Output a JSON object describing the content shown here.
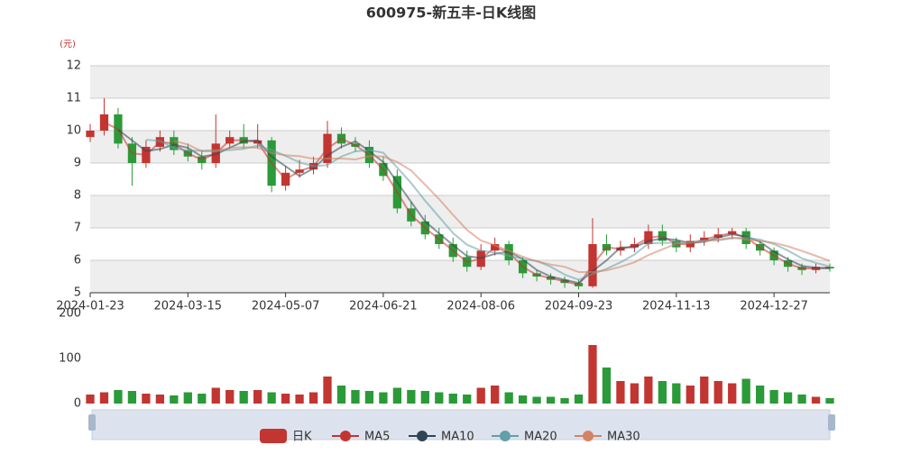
{
  "chart_data": [
    {
      "type": "candlestick",
      "title": "600975-新五丰-日K线图",
      "y_label": "(元)",
      "categories": [
        "2024-01-23",
        null,
        null,
        null,
        null,
        null,
        null,
        "2024-03-15",
        null,
        null,
        null,
        null,
        null,
        null,
        "2024-05-07",
        null,
        null,
        null,
        null,
        null,
        null,
        "2024-06-21",
        null,
        null,
        null,
        null,
        null,
        null,
        "2024-08-06",
        null,
        null,
        null,
        null,
        null,
        null,
        "2024-09-23",
        null,
        null,
        null,
        null,
        null,
        null,
        "2024-11-13",
        null,
        null,
        null,
        null,
        null,
        null,
        "2024-12-27",
        null,
        null,
        null,
        null
      ],
      "ylim": [
        5,
        12
      ],
      "yticks": [
        5,
        6,
        7,
        8,
        9,
        10,
        11,
        12
      ],
      "split_area": true,
      "series": [
        {
          "name": "日K",
          "up_color": "#c23531",
          "down_color": "#2b9a38",
          "values": [
            [
              9.8,
              10.0,
              9.65,
              10.2
            ],
            [
              10.0,
              10.5,
              9.85,
              11.0
            ],
            [
              10.5,
              9.6,
              9.45,
              10.7
            ],
            [
              9.6,
              9.0,
              8.3,
              9.8
            ],
            [
              9.0,
              9.5,
              8.85,
              9.7
            ],
            [
              9.5,
              9.8,
              9.35,
              10.0
            ],
            [
              9.8,
              9.4,
              9.25,
              10.0
            ],
            [
              9.4,
              9.2,
              9.05,
              9.6
            ],
            [
              9.2,
              9.0,
              8.8,
              9.4
            ],
            [
              9.0,
              9.6,
              8.85,
              10.5
            ],
            [
              9.6,
              9.8,
              9.45,
              10.0
            ],
            [
              9.8,
              9.6,
              9.45,
              10.2
            ],
            [
              9.6,
              9.7,
              9.45,
              10.2
            ],
            [
              9.7,
              8.3,
              8.1,
              9.8
            ],
            [
              8.3,
              8.7,
              8.15,
              8.9
            ],
            [
              8.7,
              8.8,
              8.55,
              9.1
            ],
            [
              8.8,
              9.0,
              8.65,
              9.2
            ],
            [
              9.0,
              9.9,
              8.85,
              10.3
            ],
            [
              9.9,
              9.6,
              9.45,
              10.1
            ],
            [
              9.6,
              9.5,
              9.35,
              9.8
            ],
            [
              9.5,
              9.0,
              8.85,
              9.7
            ],
            [
              9.0,
              8.6,
              8.45,
              9.2
            ],
            [
              8.6,
              7.6,
              7.45,
              8.8
            ],
            [
              7.6,
              7.2,
              7.05,
              7.8
            ],
            [
              7.2,
              6.8,
              6.65,
              7.4
            ],
            [
              6.8,
              6.5,
              6.35,
              7.0
            ],
            [
              6.5,
              6.1,
              5.95,
              6.7
            ],
            [
              6.1,
              5.8,
              5.65,
              6.3
            ],
            [
              5.8,
              6.3,
              5.7,
              6.5
            ],
            [
              6.3,
              6.5,
              6.15,
              6.7
            ],
            [
              6.5,
              6.0,
              5.85,
              6.6
            ],
            [
              6.0,
              5.6,
              5.45,
              6.1
            ],
            [
              5.6,
              5.5,
              5.35,
              5.7
            ],
            [
              5.5,
              5.4,
              5.25,
              5.6
            ],
            [
              5.4,
              5.3,
              5.15,
              5.5
            ],
            [
              5.3,
              5.2,
              5.1,
              5.4
            ],
            [
              5.2,
              6.5,
              5.15,
              7.3
            ],
            [
              6.5,
              6.3,
              6.15,
              6.8
            ],
            [
              6.3,
              6.4,
              6.15,
              6.6
            ],
            [
              6.4,
              6.5,
              6.25,
              6.7
            ],
            [
              6.5,
              6.9,
              6.35,
              7.1
            ],
            [
              6.9,
              6.6,
              6.45,
              7.1
            ],
            [
              6.6,
              6.4,
              6.25,
              6.7
            ],
            [
              6.4,
              6.6,
              6.25,
              6.8
            ],
            [
              6.6,
              6.7,
              6.45,
              6.9
            ],
            [
              6.7,
              6.8,
              6.55,
              7.0
            ],
            [
              6.8,
              6.9,
              6.65,
              7.0
            ],
            [
              6.9,
              6.5,
              6.35,
              7.0
            ],
            [
              6.5,
              6.3,
              6.15,
              6.6
            ],
            [
              6.3,
              6.0,
              5.85,
              6.4
            ],
            [
              6.0,
              5.8,
              5.65,
              6.1
            ],
            [
              5.8,
              5.7,
              5.55,
              5.9
            ],
            [
              5.7,
              5.8,
              5.6,
              5.9
            ],
            [
              5.8,
              5.75,
              5.65,
              5.9
            ]
          ]
        },
        {
          "name": "MA5",
          "color": "#c23531",
          "values": [
            null,
            10.25,
            10.05,
            9.3,
            9.25,
            9.65,
            9.6,
            9.3,
            9.1,
            9.3,
            9.7,
            9.7,
            9.65,
            9.0,
            8.5,
            8.75,
            8.9,
            9.45,
            9.75,
            9.55,
            9.25,
            8.8,
            8.1,
            7.4,
            7.0,
            6.65,
            6.3,
            5.95,
            6.05,
            6.4,
            6.25,
            5.8,
            5.55,
            5.45,
            5.35,
            5.25,
            5.85,
            6.4,
            6.35,
            6.45,
            6.7,
            6.75,
            6.5,
            6.5,
            6.65,
            6.75,
            6.85,
            6.7,
            6.4,
            6.15,
            5.9,
            5.75,
            5.75,
            5.78
          ]
        },
        {
          "name": "MA10",
          "color": "#2f4554",
          "values": [
            null,
            null,
            10.03,
            9.7,
            9.37,
            9.43,
            9.57,
            9.47,
            9.2,
            9.27,
            9.47,
            9.67,
            9.7,
            9.2,
            8.9,
            8.6,
            8.83,
            9.23,
            9.5,
            9.67,
            9.37,
            9.03,
            8.4,
            7.8,
            7.2,
            6.83,
            6.47,
            6.13,
            6.07,
            6.2,
            6.27,
            6.03,
            5.7,
            5.5,
            5.4,
            5.3,
            5.67,
            6.0,
            6.4,
            6.4,
            6.6,
            6.67,
            6.63,
            6.53,
            6.57,
            6.7,
            6.8,
            6.73,
            6.57,
            6.27,
            6.03,
            5.83,
            5.77,
            5.75
          ]
        },
        {
          "name": "MA20",
          "color": "#61a0a8",
          "values": [
            null,
            null,
            null,
            null,
            9.72,
            9.68,
            9.46,
            9.38,
            9.38,
            9.4,
            9.4,
            9.44,
            9.54,
            9.4,
            9.22,
            9.02,
            8.9,
            8.94,
            9.2,
            9.36,
            9.4,
            9.32,
            8.86,
            8.38,
            7.84,
            7.34,
            6.84,
            6.48,
            6.3,
            6.24,
            6.14,
            6.04,
            5.98,
            5.8,
            5.56,
            5.4,
            5.58,
            5.74,
            5.94,
            6.18,
            6.52,
            6.54,
            6.54,
            6.56,
            6.62,
            6.62,
            6.68,
            6.7,
            6.64,
            6.5,
            6.3,
            6.06,
            5.92,
            5.81
          ]
        },
        {
          "name": "MA30",
          "color": "#d48265",
          "values": [
            null,
            null,
            null,
            null,
            null,
            null,
            9.69,
            9.57,
            9.36,
            9.36,
            9.47,
            9.49,
            9.47,
            9.31,
            9.24,
            9.21,
            9.13,
            9.14,
            9.14,
            9.11,
            9.21,
            9.2,
            9.03,
            8.77,
            8.33,
            7.89,
            7.4,
            6.94,
            6.61,
            6.46,
            6.29,
            6.11,
            5.97,
            5.87,
            5.8,
            5.64,
            5.64,
            5.69,
            5.8,
            5.94,
            6.16,
            6.34,
            6.51,
            6.53,
            6.59,
            6.64,
            6.7,
            6.64,
            6.6,
            6.54,
            6.43,
            6.29,
            6.14,
            5.98
          ]
        }
      ]
    },
    {
      "type": "bar",
      "ylim": [
        0,
        200
      ],
      "yticks": [
        0,
        100,
        200
      ],
      "values": [
        20,
        25,
        30,
        28,
        22,
        20,
        18,
        25,
        22,
        35,
        30,
        28,
        30,
        25,
        22,
        20,
        25,
        60,
        40,
        30,
        28,
        25,
        35,
        30,
        28,
        25,
        22,
        20,
        35,
        40,
        25,
        18,
        15,
        15,
        12,
        20,
        130,
        80,
        50,
        45,
        60,
        50,
        45,
        40,
        60,
        50,
        45,
        55,
        40,
        30,
        25,
        20,
        15,
        12
      ]
    }
  ]
}
